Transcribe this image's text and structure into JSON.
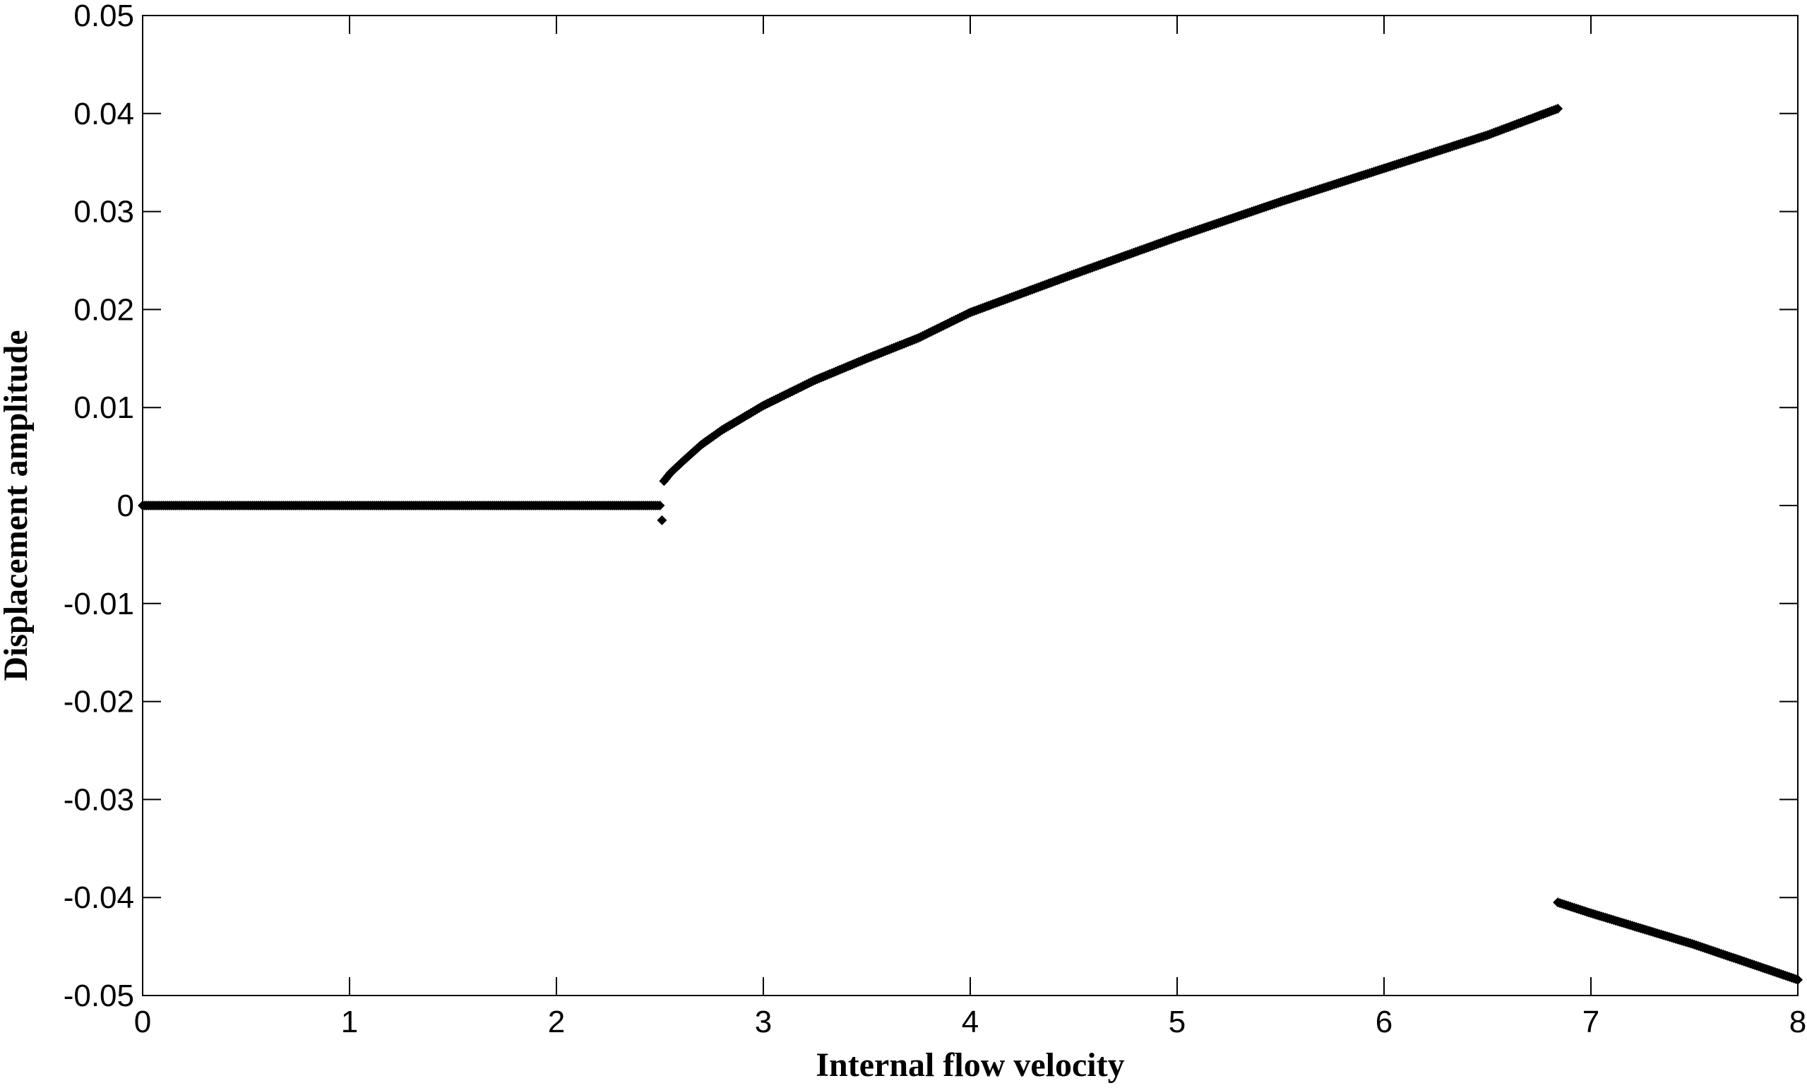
{
  "chart_data": {
    "type": "scatter",
    "title": "",
    "xlabel": "Internal flow velocity",
    "ylabel": "Displacement amplitude",
    "xlim": [
      0,
      8
    ],
    "ylim": [
      -0.05,
      0.05
    ],
    "xticks": [
      "0",
      "1",
      "2",
      "3",
      "4",
      "5",
      "6",
      "7",
      "8"
    ],
    "yticks": [
      "-0.05",
      "-0.04",
      "-0.03",
      "-0.02",
      "-0.01",
      "0",
      "0.01",
      "0.02",
      "0.03",
      "0.04",
      "0.05"
    ],
    "grid": false,
    "legend": "none",
    "marker_color": "#000000",
    "segments": [
      {
        "description": "trivial branch",
        "x_start": 0,
        "x_end": 2.5,
        "y": 0
      },
      {
        "description": "upper branch",
        "points": [
          [
            2.52,
            0.0025
          ],
          [
            2.55,
            0.0033
          ],
          [
            2.6,
            0.0043
          ],
          [
            2.7,
            0.0062
          ],
          [
            2.8,
            0.0077
          ],
          [
            3.0,
            0.0102
          ],
          [
            3.25,
            0.0128
          ],
          [
            3.5,
            0.015
          ],
          [
            3.75,
            0.0171
          ],
          [
            4.0,
            0.0197
          ],
          [
            4.5,
            0.0236
          ],
          [
            5.0,
            0.0274
          ],
          [
            5.5,
            0.031
          ],
          [
            6.0,
            0.0344
          ],
          [
            6.5,
            0.0378
          ],
          [
            6.84,
            0.0405
          ]
        ]
      },
      {
        "description": "lower branch",
        "points": [
          [
            6.84,
            -0.0405
          ],
          [
            7.0,
            -0.0416
          ],
          [
            7.5,
            -0.0448
          ],
          [
            8.0,
            -0.0484
          ]
        ]
      },
      {
        "description": "isolated points",
        "points": [
          [
            2.51,
            -0.0015
          ]
        ]
      }
    ]
  }
}
